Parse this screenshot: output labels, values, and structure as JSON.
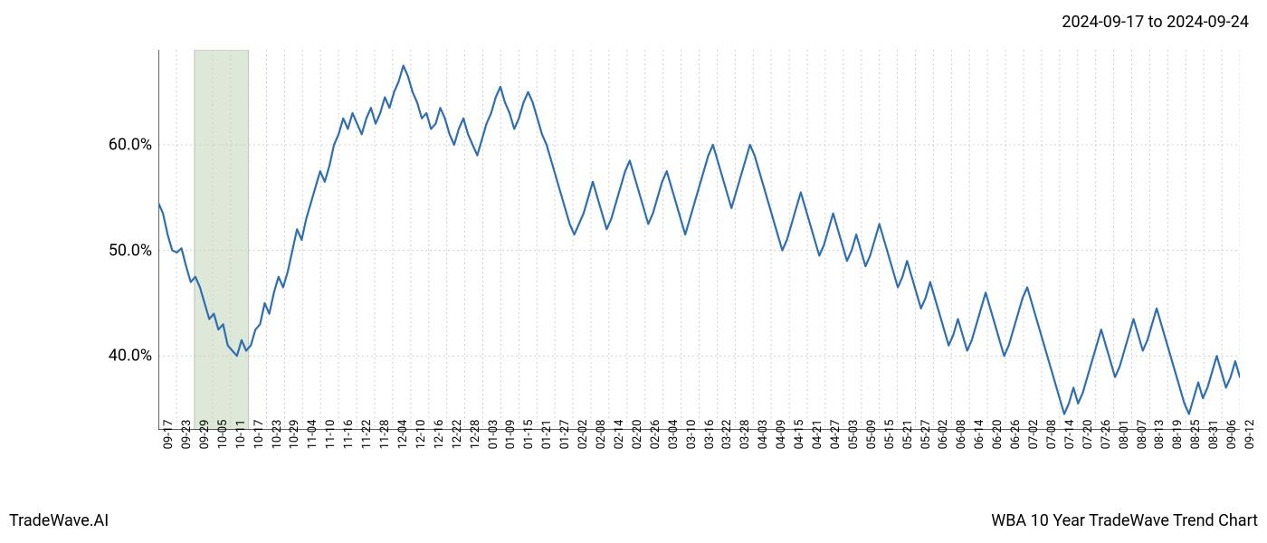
{
  "header": {
    "date_range": "2024-09-17 to 2024-09-24"
  },
  "footer": {
    "brand": "TradeWave.AI",
    "title": "WBA 10 Year TradeWave Trend Chart"
  },
  "chart": {
    "type": "line",
    "background_color": "#ffffff",
    "line_color": "#2f6eb0",
    "line_width": 2.2,
    "grid_color": "#d0d0d0",
    "grid_dash": "2,3",
    "axis_color": "#000000",
    "highlight_band": {
      "fill": "#dde8d8",
      "stroke": "#b8c8b0",
      "x_start_index": 2,
      "x_end_index": 5
    },
    "ylim": [
      33,
      69
    ],
    "y_ticks": [
      {
        "value": 40,
        "label": "40.0%"
      },
      {
        "value": 50,
        "label": "50.0%"
      },
      {
        "value": 60,
        "label": "60.0%"
      }
    ],
    "x_tick_labels": [
      "09-17",
      "09-23",
      "09-29",
      "10-05",
      "10-11",
      "10-17",
      "10-23",
      "10-29",
      "11-04",
      "11-10",
      "11-16",
      "11-22",
      "11-28",
      "12-04",
      "12-10",
      "12-16",
      "12-22",
      "12-28",
      "01-03",
      "01-09",
      "01-15",
      "01-21",
      "01-27",
      "02-02",
      "02-08",
      "02-14",
      "02-20",
      "02-26",
      "03-04",
      "03-10",
      "03-16",
      "03-22",
      "03-28",
      "04-03",
      "04-09",
      "04-15",
      "04-21",
      "04-27",
      "05-03",
      "05-09",
      "05-15",
      "05-21",
      "05-27",
      "06-02",
      "06-08",
      "06-14",
      "06-20",
      "06-26",
      "07-02",
      "07-08",
      "07-14",
      "07-20",
      "07-26",
      "08-01",
      "08-07",
      "08-13",
      "08-19",
      "08-25",
      "08-31",
      "09-06",
      "09-12"
    ],
    "series": {
      "values": [
        54.5,
        53.5,
        51.5,
        50.0,
        49.8,
        50.2,
        48.5,
        47.0,
        47.5,
        46.5,
        45.0,
        43.5,
        44.0,
        42.5,
        43.0,
        41.0,
        40.5,
        40.0,
        41.5,
        40.5,
        41.0,
        42.5,
        43.0,
        45.0,
        44.0,
        46.0,
        47.5,
        46.5,
        48.0,
        50.0,
        52.0,
        51.0,
        53.0,
        54.5,
        56.0,
        57.5,
        56.5,
        58.0,
        60.0,
        61.0,
        62.5,
        61.5,
        63.0,
        62.0,
        61.0,
        62.5,
        63.5,
        62.0,
        63.0,
        64.5,
        63.5,
        65.0,
        66.0,
        67.5,
        66.5,
        65.0,
        64.0,
        62.5,
        63.0,
        61.5,
        62.0,
        63.5,
        62.5,
        61.0,
        60.0,
        61.5,
        62.5,
        61.0,
        60.0,
        59.0,
        60.5,
        62.0,
        63.0,
        64.5,
        65.5,
        64.0,
        63.0,
        61.5,
        62.5,
        64.0,
        65.0,
        64.0,
        62.5,
        61.0,
        60.0,
        58.5,
        57.0,
        55.5,
        54.0,
        52.5,
        51.5,
        52.5,
        53.5,
        55.0,
        56.5,
        55.0,
        53.5,
        52.0,
        53.0,
        54.5,
        56.0,
        57.5,
        58.5,
        57.0,
        55.5,
        54.0,
        52.5,
        53.5,
        55.0,
        56.5,
        57.5,
        56.0,
        54.5,
        53.0,
        51.5,
        53.0,
        54.5,
        56.0,
        57.5,
        59.0,
        60.0,
        58.5,
        57.0,
        55.5,
        54.0,
        55.5,
        57.0,
        58.5,
        60.0,
        59.0,
        57.5,
        56.0,
        54.5,
        53.0,
        51.5,
        50.0,
        51.0,
        52.5,
        54.0,
        55.5,
        54.0,
        52.5,
        51.0,
        49.5,
        50.5,
        52.0,
        53.5,
        52.0,
        50.5,
        49.0,
        50.0,
        51.5,
        50.0,
        48.5,
        49.5,
        51.0,
        52.5,
        51.0,
        49.5,
        48.0,
        46.5,
        47.5,
        49.0,
        47.5,
        46.0,
        44.5,
        45.5,
        47.0,
        45.5,
        44.0,
        42.5,
        41.0,
        42.0,
        43.5,
        42.0,
        40.5,
        41.5,
        43.0,
        44.5,
        46.0,
        44.5,
        43.0,
        41.5,
        40.0,
        41.0,
        42.5,
        44.0,
        45.5,
        46.5,
        45.0,
        43.5,
        42.0,
        40.5,
        39.0,
        37.5,
        36.0,
        34.5,
        35.5,
        37.0,
        35.5,
        36.5,
        38.0,
        39.5,
        41.0,
        42.5,
        41.0,
        39.5,
        38.0,
        39.0,
        40.5,
        42.0,
        43.5,
        42.0,
        40.5,
        41.5,
        43.0,
        44.5,
        43.0,
        41.5,
        40.0,
        38.5,
        37.0,
        35.5,
        34.5,
        36.0,
        37.5,
        36.0,
        37.0,
        38.5,
        40.0,
        38.5,
        37.0,
        38.0,
        39.5,
        38.0
      ]
    }
  }
}
